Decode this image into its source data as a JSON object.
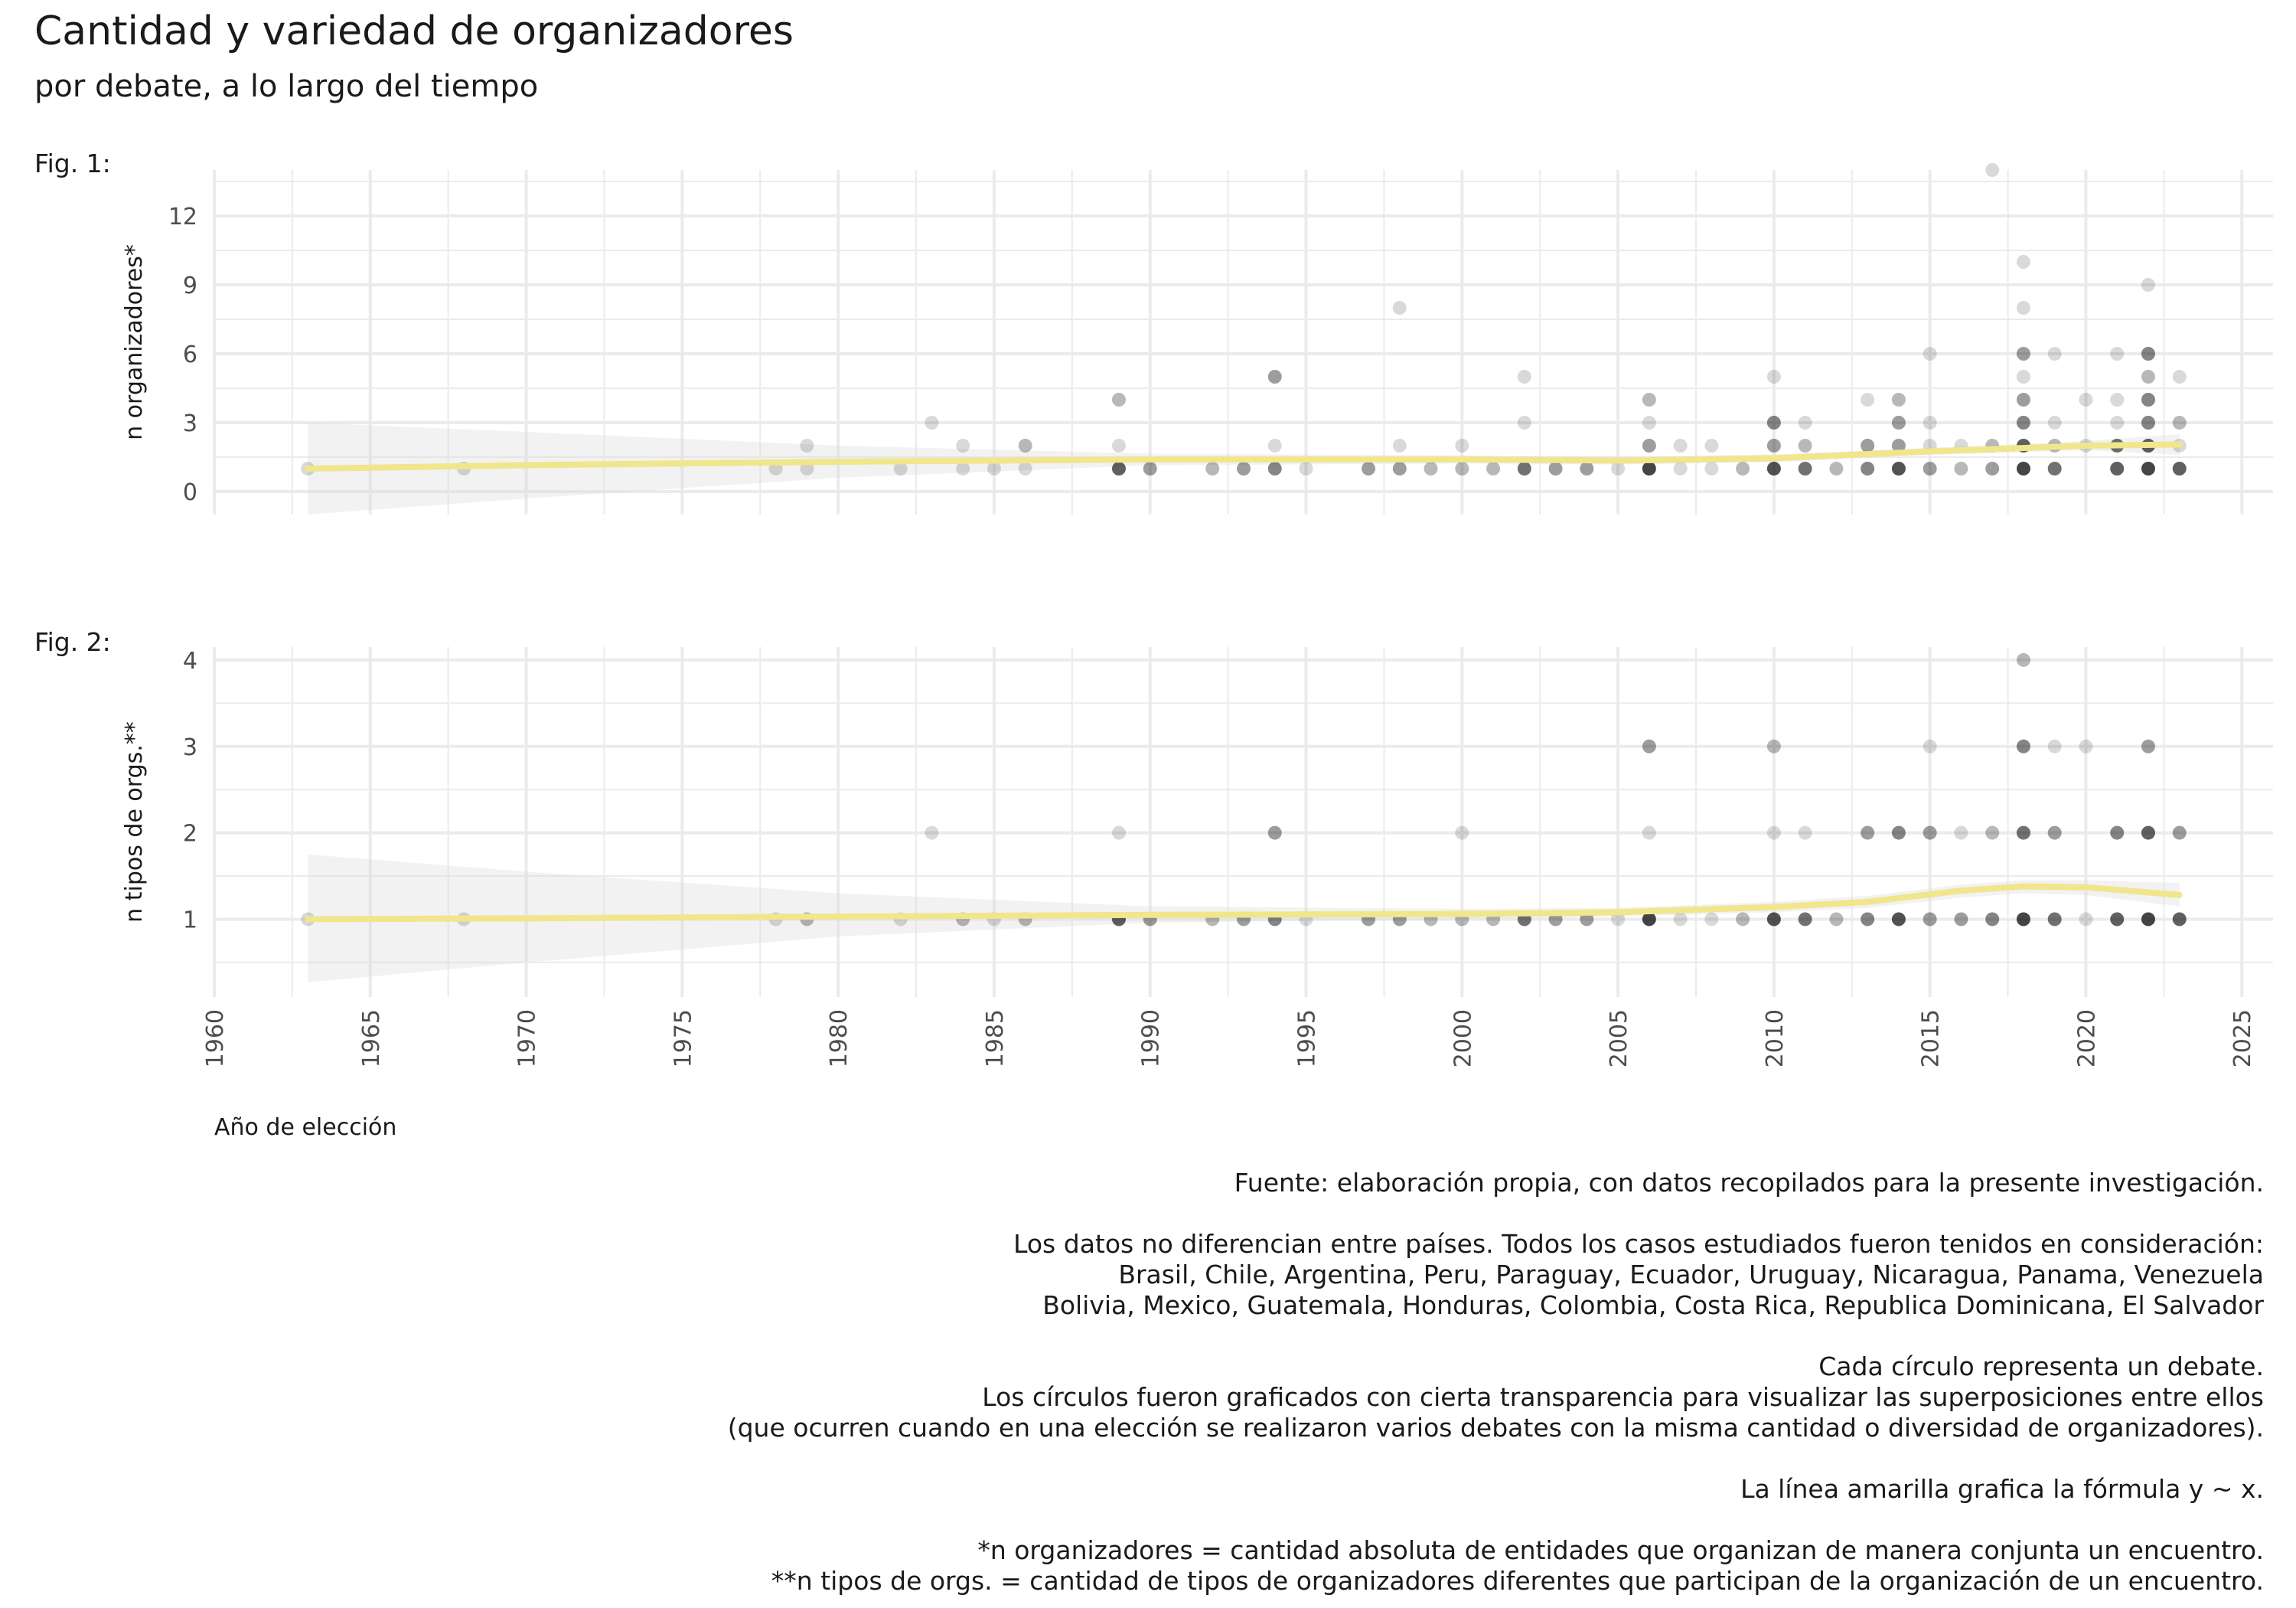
{
  "title": "Cantidad y variedad de organizadores",
  "subtitle": "por debate, a lo largo del tiempo",
  "colors": {
    "point": "#000000",
    "smooth": "#f0e68c",
    "ribbon": "#d9d9d9",
    "grid": "#ebebeb"
  },
  "caption": {
    "source": "Fuente: elaboración propia, con datos recopilados para la presente investigación.",
    "countries_intro": "Los datos no diferencian entre países. Todos los casos estudiados fueron tenidos en consideración:",
    "countries_1": "Brasil, Chile, Argentina, Peru, Paraguay, Ecuador, Uruguay, Nicaragua, Panama, Venezuela",
    "countries_2": "Bolivia, Mexico, Guatemala, Honduras, Colombia, Costa Rica, Republica Dominicana, El Salvador",
    "circle_1": "Cada círculo representa un debate.",
    "circle_2": "Los círculos fueron graficados con cierta transparencia para visualizar las superposiciones entre ellos",
    "circle_3": "(que ocurren cuando en una elección se realizaron varios debates con la misma cantidad o diversidad de organizadores).",
    "line_note": "La línea amarilla grafica la fórmula y ~ x.",
    "note_1": "*n organizadores = cantidad absoluta de entidades que organizan de manera conjunta un encuentro.",
    "note_2": "**n tipos de orgs. = cantidad de tipos de organizadores diferentes que participan de la organización de un encuentro."
  },
  "chart_data": [
    {
      "type": "scatter",
      "tag": "Fig. 1:",
      "xlabel": "Año de elección",
      "ylabel": "n organizadores*",
      "xlim": [
        1960,
        2026
      ],
      "ylim": [
        -1,
        14
      ],
      "xticks": [
        "1960",
        "1965",
        "1970",
        "1975",
        "1980",
        "1985",
        "1990",
        "1995",
        "2000",
        "2005",
        "2010",
        "2015",
        "2020",
        "2025"
      ],
      "yticks": [
        "0",
        "3",
        "6",
        "9",
        "12"
      ],
      "points": [
        [
          1963,
          1,
          1
        ],
        [
          1968,
          1,
          1
        ],
        [
          1978,
          1,
          1
        ],
        [
          1979,
          1,
          1
        ],
        [
          1979,
          2,
          1
        ],
        [
          1982,
          1,
          1
        ],
        [
          1983,
          3,
          1
        ],
        [
          1984,
          1,
          1
        ],
        [
          1984,
          2,
          1
        ],
        [
          1985,
          1,
          1
        ],
        [
          1986,
          1,
          1
        ],
        [
          1986,
          2,
          2
        ],
        [
          1989,
          1,
          6
        ],
        [
          1989,
          2,
          1
        ],
        [
          1989,
          4,
          2
        ],
        [
          1990,
          1,
          3
        ],
        [
          1992,
          1,
          2
        ],
        [
          1993,
          1,
          3
        ],
        [
          1994,
          1,
          4
        ],
        [
          1994,
          2,
          1
        ],
        [
          1994,
          5,
          3
        ],
        [
          1995,
          1,
          1
        ],
        [
          1997,
          1,
          3
        ],
        [
          1998,
          1,
          3
        ],
        [
          1998,
          2,
          1
        ],
        [
          1998,
          8,
          1
        ],
        [
          1999,
          1,
          2
        ],
        [
          2000,
          1,
          2
        ],
        [
          2000,
          2,
          1
        ],
        [
          2001,
          1,
          2
        ],
        [
          2002,
          1,
          5
        ],
        [
          2002,
          3,
          1
        ],
        [
          2002,
          5,
          1
        ],
        [
          2003,
          1,
          3
        ],
        [
          2004,
          1,
          3
        ],
        [
          2005,
          1,
          1
        ],
        [
          2006,
          1,
          8
        ],
        [
          2006,
          2,
          3
        ],
        [
          2006,
          3,
          1
        ],
        [
          2006,
          4,
          2
        ],
        [
          2007,
          1,
          1
        ],
        [
          2007,
          2,
          1
        ],
        [
          2008,
          1,
          1
        ],
        [
          2008,
          2,
          1
        ],
        [
          2009,
          1,
          2
        ],
        [
          2010,
          1,
          7
        ],
        [
          2010,
          2,
          3
        ],
        [
          2010,
          3,
          4
        ],
        [
          2010,
          5,
          1
        ],
        [
          2011,
          1,
          5
        ],
        [
          2011,
          2,
          2
        ],
        [
          2011,
          3,
          1
        ],
        [
          2012,
          1,
          2
        ],
        [
          2013,
          1,
          4
        ],
        [
          2013,
          2,
          3
        ],
        [
          2013,
          4,
          1
        ],
        [
          2014,
          1,
          7
        ],
        [
          2014,
          2,
          3
        ],
        [
          2014,
          3,
          3
        ],
        [
          2014,
          4,
          2
        ],
        [
          2015,
          1,
          3
        ],
        [
          2015,
          2,
          1
        ],
        [
          2015,
          3,
          1
        ],
        [
          2015,
          6,
          1
        ],
        [
          2016,
          1,
          2
        ],
        [
          2016,
          2,
          1
        ],
        [
          2017,
          1,
          3
        ],
        [
          2017,
          2,
          2
        ],
        [
          2017,
          14,
          1
        ],
        [
          2018,
          1,
          8
        ],
        [
          2018,
          2,
          6
        ],
        [
          2018,
          3,
          4
        ],
        [
          2018,
          4,
          3
        ],
        [
          2018,
          5,
          1
        ],
        [
          2018,
          6,
          3
        ],
        [
          2018,
          8,
          1
        ],
        [
          2018,
          10,
          1
        ],
        [
          2019,
          1,
          5
        ],
        [
          2019,
          2,
          2
        ],
        [
          2019,
          3,
          1
        ],
        [
          2019,
          6,
          1
        ],
        [
          2020,
          2,
          1
        ],
        [
          2020,
          4,
          1
        ],
        [
          2021,
          1,
          6
        ],
        [
          2021,
          2,
          5
        ],
        [
          2021,
          3,
          1
        ],
        [
          2021,
          4,
          1
        ],
        [
          2021,
          6,
          1
        ],
        [
          2022,
          1,
          8
        ],
        [
          2022,
          2,
          6
        ],
        [
          2022,
          3,
          4
        ],
        [
          2022,
          4,
          4
        ],
        [
          2022,
          5,
          2
        ],
        [
          2022,
          6,
          4
        ],
        [
          2022,
          9,
          1
        ],
        [
          2023,
          1,
          6
        ],
        [
          2023,
          2,
          1
        ],
        [
          2023,
          3,
          2
        ],
        [
          2023,
          5,
          1
        ]
      ],
      "smooth": [
        [
          1963,
          1.0
        ],
        [
          1970,
          1.15
        ],
        [
          1980,
          1.3
        ],
        [
          1990,
          1.4
        ],
        [
          2000,
          1.4
        ],
        [
          2005,
          1.35
        ],
        [
          2010,
          1.45
        ],
        [
          2015,
          1.75
        ],
        [
          2020,
          2.0
        ],
        [
          2023,
          2.05
        ]
      ],
      "ribbon_upper": [
        [
          1963,
          3.0
        ],
        [
          1970,
          2.6
        ],
        [
          1980,
          2.0
        ],
        [
          1990,
          1.65
        ],
        [
          2000,
          1.58
        ],
        [
          2005,
          1.52
        ],
        [
          2010,
          1.62
        ],
        [
          2015,
          1.9
        ],
        [
          2020,
          2.2
        ],
        [
          2023,
          2.5
        ]
      ],
      "ribbon_lower": [
        [
          1963,
          -1.0
        ],
        [
          1970,
          -0.3
        ],
        [
          1980,
          0.6
        ],
        [
          1990,
          1.15
        ],
        [
          2000,
          1.22
        ],
        [
          2005,
          1.18
        ],
        [
          2010,
          1.28
        ],
        [
          2015,
          1.6
        ],
        [
          2020,
          1.8
        ],
        [
          2023,
          1.6
        ]
      ]
    },
    {
      "type": "scatter",
      "tag": "Fig. 2:",
      "xlabel": "Año de elección",
      "ylabel": "n tipos de orgs.**",
      "xlim": [
        1960,
        2026
      ],
      "ylim": [
        0.1,
        4.15
      ],
      "xticks": [
        "1960",
        "1965",
        "1970",
        "1975",
        "1980",
        "1985",
        "1990",
        "1995",
        "2000",
        "2005",
        "2010",
        "2015",
        "2020",
        "2025"
      ],
      "yticks": [
        "1",
        "2",
        "3",
        "4"
      ],
      "points": [
        [
          1963,
          1,
          1
        ],
        [
          1968,
          1,
          1
        ],
        [
          1978,
          1,
          1
        ],
        [
          1979,
          1,
          2
        ],
        [
          1982,
          1,
          1
        ],
        [
          1983,
          2,
          1
        ],
        [
          1984,
          1,
          2
        ],
        [
          1985,
          1,
          1
        ],
        [
          1986,
          1,
          2
        ],
        [
          1989,
          1,
          6
        ],
        [
          1989,
          2,
          1
        ],
        [
          1990,
          1,
          3
        ],
        [
          1992,
          1,
          2
        ],
        [
          1993,
          1,
          3
        ],
        [
          1994,
          1,
          4
        ],
        [
          1994,
          2,
          3
        ],
        [
          1995,
          1,
          1
        ],
        [
          1997,
          1,
          3
        ],
        [
          1998,
          1,
          3
        ],
        [
          1999,
          1,
          2
        ],
        [
          2000,
          1,
          2
        ],
        [
          2000,
          2,
          1
        ],
        [
          2001,
          1,
          2
        ],
        [
          2002,
          1,
          5
        ],
        [
          2003,
          1,
          3
        ],
        [
          2004,
          1,
          3
        ],
        [
          2005,
          1,
          1
        ],
        [
          2006,
          1,
          8
        ],
        [
          2006,
          2,
          1
        ],
        [
          2006,
          3,
          3
        ],
        [
          2007,
          1,
          1
        ],
        [
          2008,
          1,
          1
        ],
        [
          2009,
          1,
          2
        ],
        [
          2010,
          1,
          7
        ],
        [
          2010,
          2,
          1
        ],
        [
          2010,
          3,
          2
        ],
        [
          2011,
          1,
          5
        ],
        [
          2011,
          2,
          1
        ],
        [
          2012,
          1,
          2
        ],
        [
          2013,
          1,
          4
        ],
        [
          2013,
          2,
          3
        ],
        [
          2014,
          1,
          7
        ],
        [
          2014,
          2,
          4
        ],
        [
          2015,
          1,
          3
        ],
        [
          2015,
          2,
          3
        ],
        [
          2015,
          3,
          1
        ],
        [
          2016,
          1,
          3
        ],
        [
          2016,
          2,
          1
        ],
        [
          2017,
          1,
          4
        ],
        [
          2017,
          2,
          2
        ],
        [
          2018,
          1,
          8
        ],
        [
          2018,
          2,
          5
        ],
        [
          2018,
          3,
          4
        ],
        [
          2018,
          4,
          2
        ],
        [
          2019,
          1,
          5
        ],
        [
          2019,
          2,
          3
        ],
        [
          2019,
          3,
          1
        ],
        [
          2020,
          1,
          1
        ],
        [
          2020,
          3,
          1
        ],
        [
          2021,
          1,
          6
        ],
        [
          2021,
          2,
          4
        ],
        [
          2022,
          1,
          8
        ],
        [
          2022,
          2,
          6
        ],
        [
          2022,
          3,
          3
        ],
        [
          2023,
          1,
          6
        ],
        [
          2023,
          2,
          3
        ]
      ],
      "smooth": [
        [
          1963,
          1.0
        ],
        [
          1970,
          1.01
        ],
        [
          1980,
          1.03
        ],
        [
          1990,
          1.05
        ],
        [
          2000,
          1.06
        ],
        [
          2005,
          1.08
        ],
        [
          2010,
          1.14
        ],
        [
          2013,
          1.2
        ],
        [
          2016,
          1.33
        ],
        [
          2018,
          1.38
        ],
        [
          2020,
          1.37
        ],
        [
          2023,
          1.28
        ]
      ],
      "ribbon_upper": [
        [
          1963,
          1.75
        ],
        [
          1970,
          1.55
        ],
        [
          1980,
          1.3
        ],
        [
          1990,
          1.15
        ],
        [
          2000,
          1.12
        ],
        [
          2005,
          1.13
        ],
        [
          2010,
          1.2
        ],
        [
          2013,
          1.27
        ],
        [
          2016,
          1.4
        ],
        [
          2018,
          1.45
        ],
        [
          2020,
          1.45
        ],
        [
          2023,
          1.42
        ]
      ],
      "ribbon_lower": [
        [
          1963,
          0.27
        ],
        [
          1970,
          0.5
        ],
        [
          1980,
          0.8
        ],
        [
          1990,
          0.96
        ],
        [
          2000,
          1.0
        ],
        [
          2005,
          1.03
        ],
        [
          2010,
          1.08
        ],
        [
          2013,
          1.13
        ],
        [
          2016,
          1.25
        ],
        [
          2018,
          1.3
        ],
        [
          2020,
          1.28
        ],
        [
          2023,
          1.15
        ]
      ]
    }
  ]
}
